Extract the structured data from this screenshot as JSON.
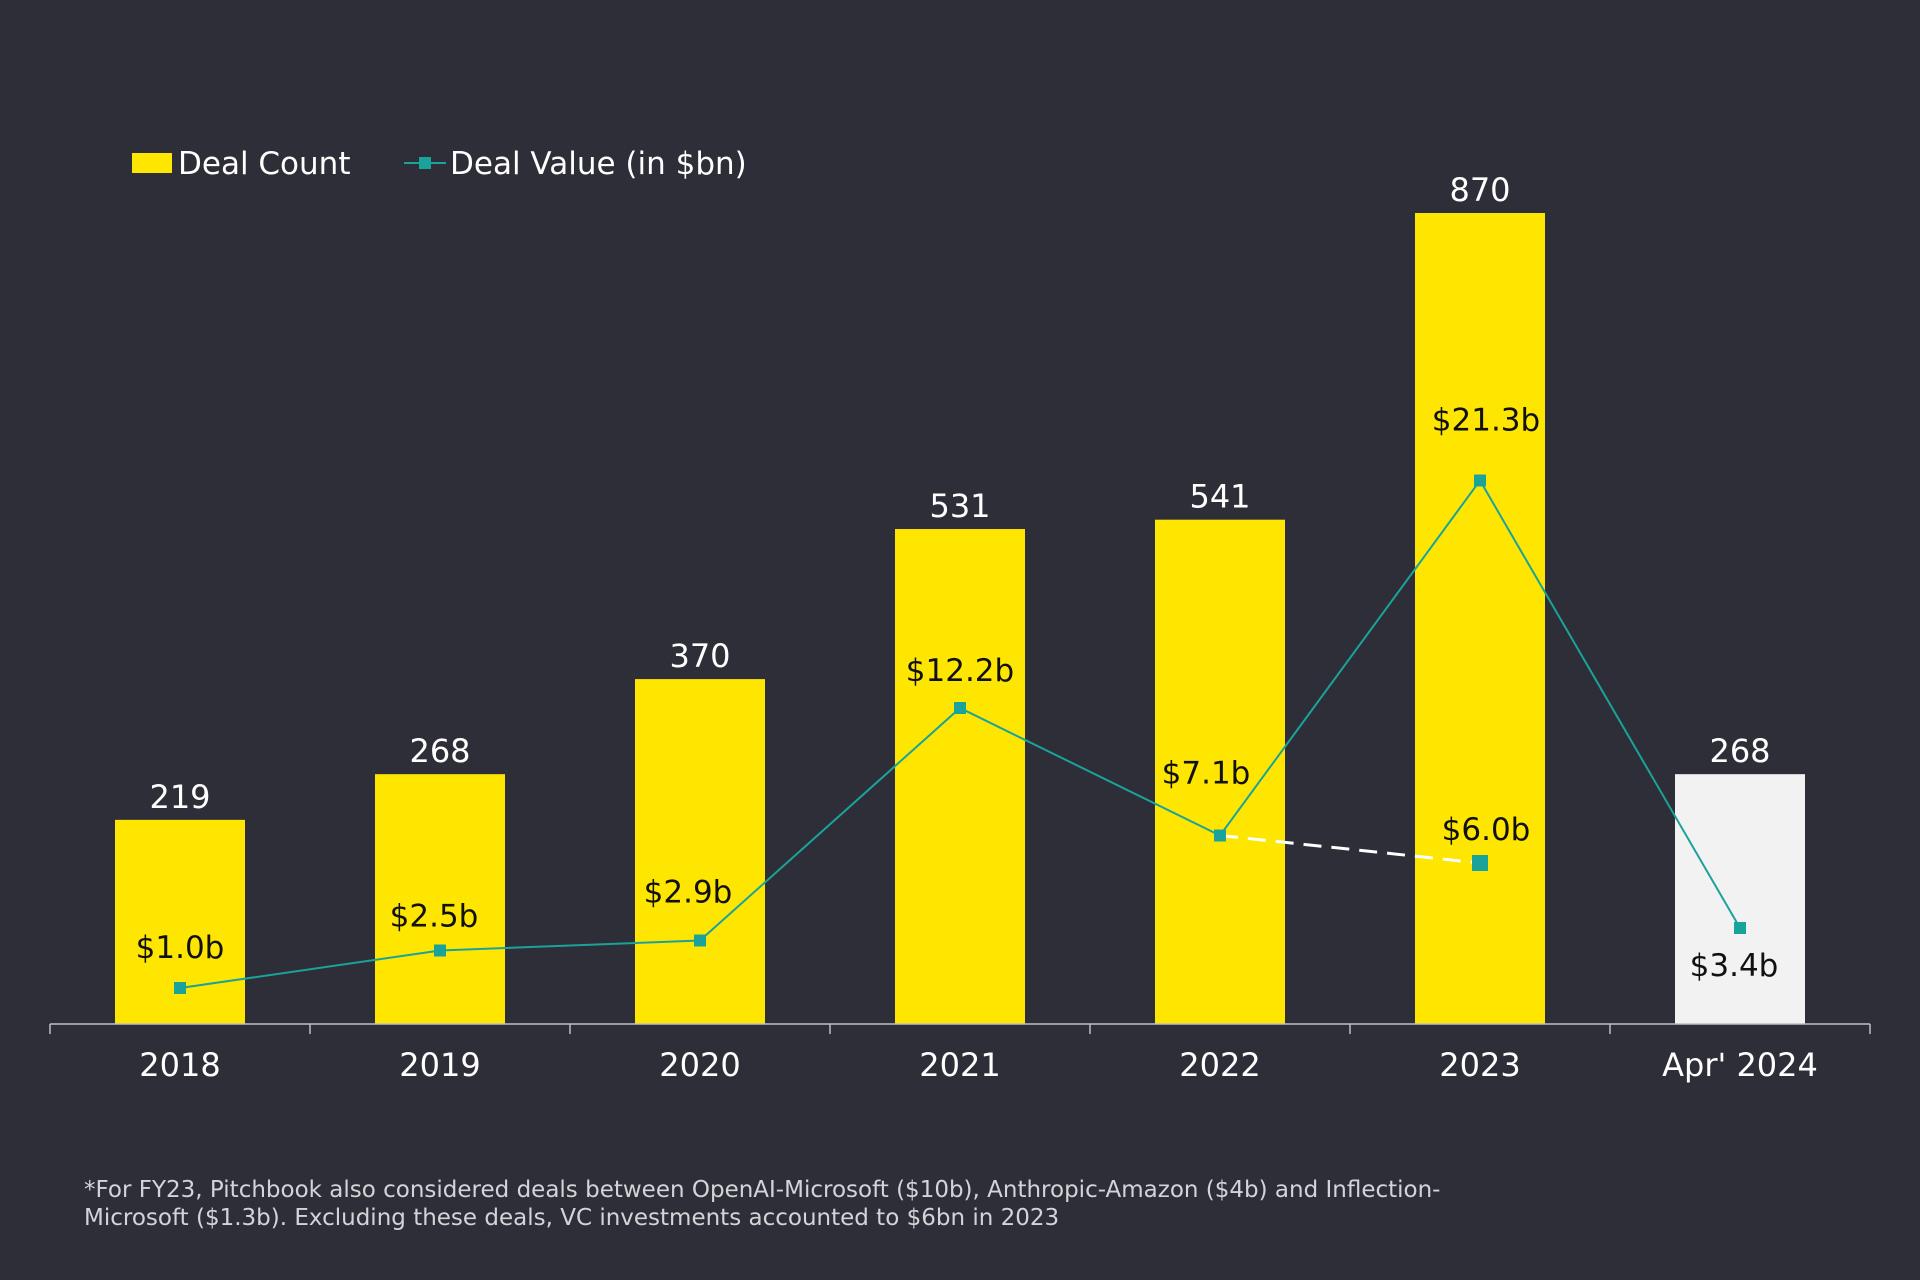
{
  "chart_data": {
    "type": "bar",
    "categories": [
      "2018",
      "2019",
      "2020",
      "2021",
      "2022",
      "2023",
      "Apr' 2024"
    ],
    "series": [
      {
        "name": "Deal Count",
        "kind": "bar",
        "values": [
          219,
          268,
          370,
          531,
          541,
          870,
          268
        ],
        "labels": [
          "219",
          "268",
          "370",
          "531",
          "541",
          "870",
          "268"
        ],
        "color": "#ffe600",
        "highlight_color": "#f2f2f2"
      },
      {
        "name": "Deal Value (in $bn)",
        "kind": "line",
        "values": [
          1.0,
          2.5,
          2.9,
          12.2,
          7.1,
          21.3,
          3.4
        ],
        "labels": [
          "$1.0b",
          "$2.5b",
          "$2.9b",
          "$12.2b",
          "$7.1b",
          "$21.3b",
          "$3.4b"
        ],
        "color": "#1aa39a"
      }
    ],
    "adjusted_point": {
      "from_category": "2022",
      "category": "2023",
      "value": 6.0,
      "label": "$6.0b",
      "line_style": "dashed",
      "color": "#ffffff"
    },
    "legend_position": "top-left",
    "grid": false
  },
  "footnote": "*For FY23, Pitchbook also considered deals between OpenAI-Microsoft ($10b), Anthropic-Amazon ($4b) and Inflection-\nMicrosoft ($1.3b). Excluding these deals, VC investments accounted to $6bn in 2023"
}
